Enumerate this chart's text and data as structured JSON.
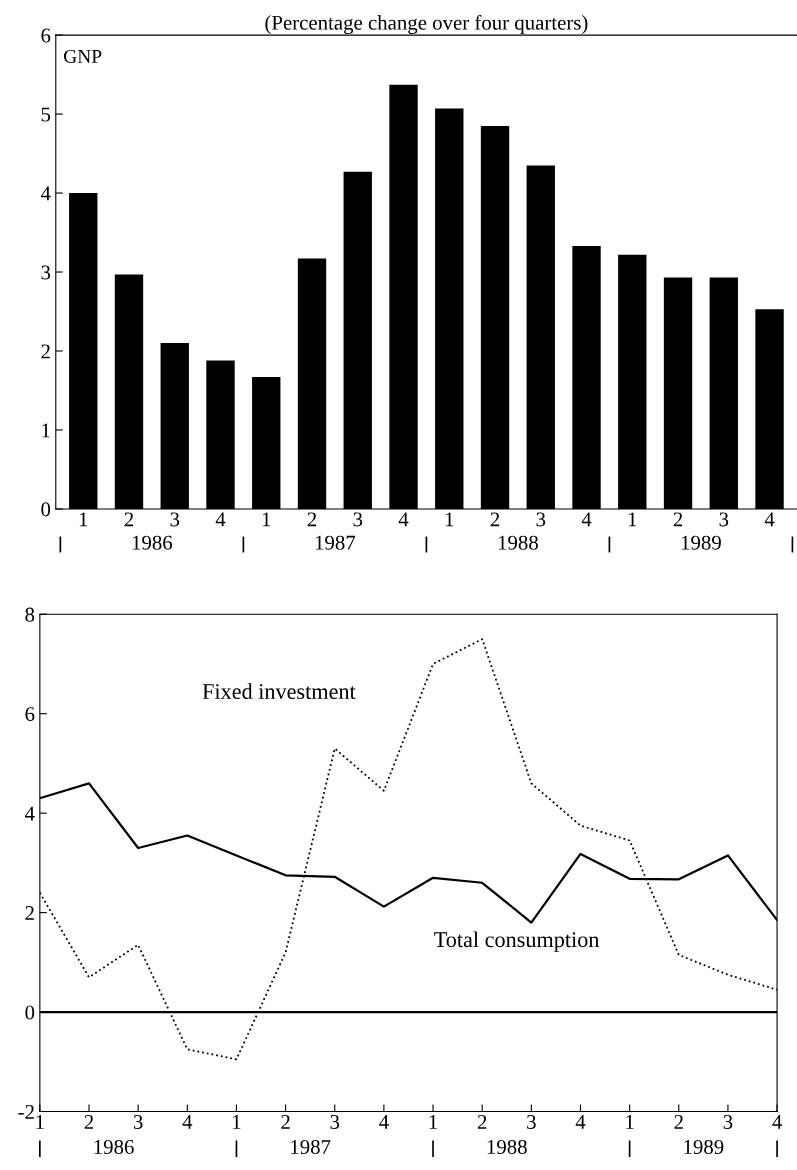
{
  "chart_data": [
    {
      "type": "bar",
      "title": "(Percentage change over four quarters)",
      "categories": [
        "1",
        "2",
        "3",
        "4",
        "1",
        "2",
        "3",
        "4",
        "1",
        "2",
        "3",
        "4",
        "1",
        "2",
        "3",
        "4"
      ],
      "values": [
        4.0,
        2.97,
        2.1,
        1.88,
        1.67,
        3.17,
        4.27,
        5.37,
        5.07,
        4.85,
        4.35,
        3.33,
        3.22,
        2.93,
        2.93,
        2.53
      ],
      "color": "#000000",
      "ylim": [
        0,
        6
      ],
      "yticks": [
        0,
        1,
        2,
        3,
        4,
        5,
        6
      ],
      "grid": false,
      "legend": false,
      "annotations": [
        "GNP",
        "1986",
        "1987",
        "1988",
        "1989"
      ]
    },
    {
      "type": "line",
      "categories": [
        "1",
        "2",
        "3",
        "4",
        "1",
        "2",
        "3",
        "4",
        "1",
        "2",
        "3",
        "4",
        "1",
        "2",
        "3",
        "4"
      ],
      "series": [
        {
          "name": "Fixed investment",
          "color": "#000000",
          "line_style": "dotted",
          "values": [
            2.4,
            0.7,
            1.35,
            -0.75,
            -0.95,
            1.2,
            5.3,
            4.45,
            7.0,
            7.5,
            4.6,
            3.75,
            3.45,
            1.15,
            0.75,
            0.45
          ]
        },
        {
          "name": "Total consumption",
          "color": "#000000",
          "line_style": "solid",
          "values": [
            4.3,
            4.6,
            3.3,
            3.55,
            3.15,
            2.75,
            2.72,
            2.12,
            2.7,
            2.6,
            1.8,
            3.18,
            2.68,
            2.67,
            3.15,
            1.85
          ]
        }
      ],
      "ylim": [
        -2,
        8
      ],
      "yticks": [
        {
          "value": -2,
          "label": "-2"
        },
        0,
        2,
        4,
        6,
        8
      ],
      "grid": false,
      "legend": false,
      "marker": "none",
      "ref_lines": [
        {
          "axis": "y",
          "value": 0,
          "color": "#000000",
          "line_style": "solid"
        }
      ],
      "annotations": [
        "1986",
        "1987",
        "1988",
        "1989"
      ]
    }
  ]
}
